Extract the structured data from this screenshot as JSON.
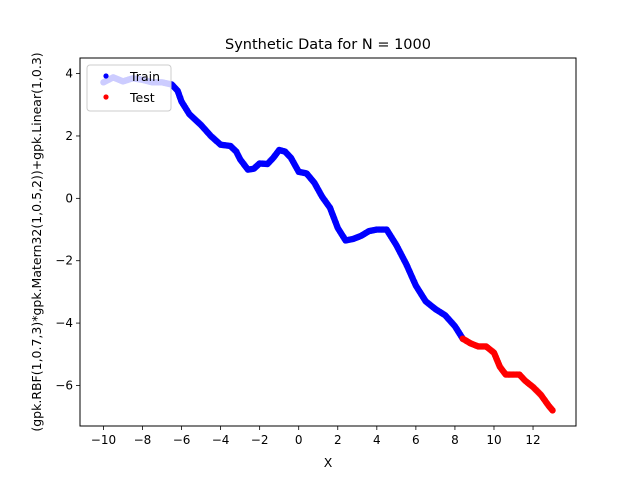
{
  "chart_data": {
    "type": "scatter",
    "title": "Synthetic Data for N = 1000",
    "xlabel": "X",
    "ylabel": "(gpk.RBF(1,0.7,3)*gpk.Matern32(1,0.5,2))+gpk.Linear(1,0.3)",
    "xlim": [
      -11.2,
      14.2
    ],
    "ylim": [
      -7.3,
      4.5
    ],
    "xticks": [
      -10,
      -8,
      -6,
      -4,
      -2,
      0,
      2,
      4,
      6,
      8,
      10,
      12
    ],
    "yticks": [
      -6,
      -4,
      -2,
      0,
      2,
      4
    ],
    "xtick_labels": [
      "−10",
      "−8",
      "−6",
      "−4",
      "−2",
      "0",
      "2",
      "4",
      "6",
      "8",
      "10",
      "12"
    ],
    "ytick_labels": [
      "−6",
      "−4",
      "−2",
      "0",
      "2",
      "4"
    ],
    "grid": false,
    "legend_position": "top-left",
    "series": [
      {
        "name": "Train",
        "color": "#0000ff",
        "x": [
          -10.0,
          -9.5,
          -9.0,
          -8.5,
          -8.0,
          -7.5,
          -7.0,
          -6.5,
          -6.2,
          -6.0,
          -5.6,
          -5.0,
          -4.5,
          -4.0,
          -3.5,
          -3.2,
          -3.0,
          -2.6,
          -2.3,
          -2.0,
          -1.6,
          -1.3,
          -1.0,
          -0.7,
          -0.4,
          0.0,
          0.4,
          0.8,
          1.2,
          1.6,
          2.0,
          2.4,
          2.8,
          3.2,
          3.6,
          4.0,
          4.5,
          5.0,
          5.5,
          6.0,
          6.5,
          7.0,
          7.5,
          8.0,
          8.4
        ],
        "y": [
          3.72,
          3.88,
          3.75,
          3.85,
          3.8,
          3.72,
          3.72,
          3.65,
          3.45,
          3.1,
          2.7,
          2.35,
          2.0,
          1.72,
          1.68,
          1.5,
          1.25,
          0.92,
          0.95,
          1.12,
          1.1,
          1.3,
          1.55,
          1.5,
          1.3,
          0.85,
          0.8,
          0.5,
          0.05,
          -0.3,
          -0.95,
          -1.35,
          -1.3,
          -1.2,
          -1.05,
          -1.0,
          -1.0,
          -1.5,
          -2.1,
          -2.8,
          -3.3,
          -3.55,
          -3.75,
          -4.1,
          -4.5
        ]
      },
      {
        "name": "Test",
        "color": "#ff0000",
        "x": [
          8.4,
          8.8,
          9.2,
          9.6,
          10.0,
          10.3,
          10.6,
          11.0,
          11.3,
          11.6,
          12.0,
          12.4,
          12.8,
          13.0
        ],
        "y": [
          -4.5,
          -4.65,
          -4.75,
          -4.75,
          -4.95,
          -5.4,
          -5.65,
          -5.65,
          -5.65,
          -5.85,
          -6.05,
          -6.3,
          -6.65,
          -6.8
        ]
      }
    ]
  }
}
